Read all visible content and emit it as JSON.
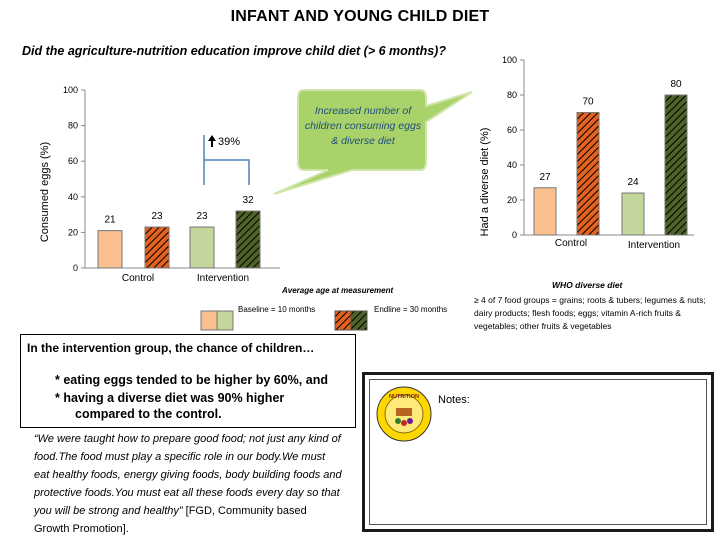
{
  "title": "INFANT AND YOUNG CHILD DIET",
  "question": "Did the agriculture-nutrition education improve child diet (> 6 months)?",
  "callout": "Increased number of children consuming eggs & diverse diet",
  "legend": {
    "heading": "Average age at measurement",
    "baseline": "Baseline = 10 months",
    "endline": "Endline = 30 months"
  },
  "who": {
    "title": "WHO diverse diet",
    "description": "≥ 4 of 7 food groups = grains; roots & tubers; legumes & nuts; dairy products; flesh foods; eggs; vitamin A-rich fruits & vegetables; other fruits & vegetables"
  },
  "summary": {
    "heading": "In the intervention group, the chance of children…",
    "bullet1": "* eating eggs tended to be higher by  60%, and",
    "bullet2": "* having a diverse diet was 90% higher",
    "bullet2b": "compared to the control."
  },
  "quote": {
    "text": "“We were taught how to prepare good food; not just any kind of food.The food must play a specific role in our body.We must eat healthy foods, energy giving foods, body building foods and protective foods.You must eat all these foods every day so that you will be strong and healthy”",
    "source": " [FGD, Community based Growth Promotion]."
  },
  "notes_label": "Notes:",
  "logo_text": "NUTRITION",
  "colors": {
    "control_baseline": "#f9bf8f",
    "control_endline": "#e3621e",
    "intervention_baseline": "#c3d69b",
    "intervention_endline": "#4f6228",
    "callout_fill": "#a9d26b",
    "callout_text": "#1f4e79",
    "bracket": "#4f81bd"
  },
  "chart_data": [
    {
      "type": "bar",
      "ylabel": "Consumed eggs (%)",
      "ylim": [
        0,
        100
      ],
      "yticks": [
        0,
        20,
        40,
        60,
        80,
        100
      ],
      "categories": [
        "Control",
        "Intervention"
      ],
      "series": [
        {
          "name": "Baseline",
          "values": [
            21,
            23
          ]
        },
        {
          "name": "Endline",
          "values": [
            23,
            32
          ]
        }
      ],
      "annotation": "39%"
    },
    {
      "type": "bar",
      "ylabel": "Had a diverse diet (%)",
      "ylim": [
        0,
        100
      ],
      "yticks": [
        0,
        20,
        40,
        60,
        80,
        100
      ],
      "categories": [
        "Control",
        "Intervention"
      ],
      "series": [
        {
          "name": "Baseline",
          "values": [
            27,
            24
          ]
        },
        {
          "name": "Endline",
          "values": [
            70,
            80
          ]
        }
      ]
    }
  ]
}
